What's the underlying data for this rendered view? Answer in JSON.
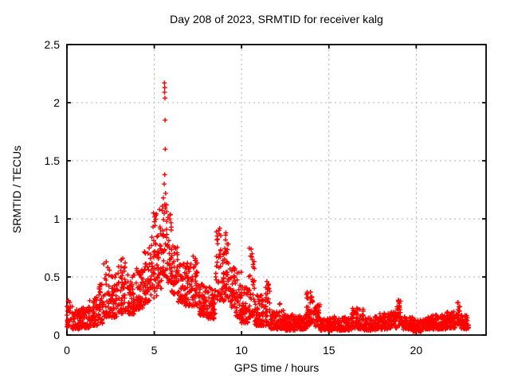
{
  "chart_data": {
    "type": "scatter",
    "title": "Day 208 of 2023, SRMTID for receiver kalg",
    "xlabel": "GPS time / hours",
    "ylabel": "SRMTID / TECUs",
    "xlim": [
      0,
      24
    ],
    "ylim": [
      0,
      2.5
    ],
    "xticks": [
      0,
      5,
      10,
      15,
      20
    ],
    "yticks": [
      0,
      0.5,
      1,
      1.5,
      2,
      2.5
    ],
    "grid": true,
    "legend": null,
    "marker": "plus",
    "marker_color": "#ff0000",
    "grid_color": "#b0b0b0",
    "border_color": "#000000",
    "seed": 13,
    "density_bins": [
      [
        0.0,
        0.3,
        0.07,
        0.33,
        30
      ],
      [
        0.3,
        0.8,
        0.05,
        0.22,
        55
      ],
      [
        0.8,
        1.3,
        0.06,
        0.25,
        55
      ],
      [
        1.3,
        1.8,
        0.08,
        0.33,
        55
      ],
      [
        1.8,
        2.1,
        0.1,
        0.45,
        35
      ],
      [
        2.1,
        2.45,
        0.15,
        0.62,
        40
      ],
      [
        2.45,
        2.9,
        0.15,
        0.52,
        50
      ],
      [
        2.9,
        3.35,
        0.18,
        0.65,
        50
      ],
      [
        3.35,
        3.9,
        0.18,
        0.52,
        60
      ],
      [
        3.9,
        4.4,
        0.22,
        0.58,
        55
      ],
      [
        4.4,
        4.8,
        0.28,
        0.75,
        45
      ],
      [
        4.8,
        5.15,
        0.32,
        1.05,
        40
      ],
      [
        5.15,
        5.45,
        0.4,
        0.95,
        35
      ],
      [
        5.45,
        5.75,
        0.5,
        1.15,
        40
      ],
      [
        5.75,
        6.0,
        0.45,
        1.05,
        30
      ],
      [
        6.0,
        6.35,
        0.35,
        0.8,
        40
      ],
      [
        6.35,
        6.75,
        0.28,
        0.62,
        45
      ],
      [
        6.75,
        7.15,
        0.25,
        0.62,
        45
      ],
      [
        7.15,
        7.5,
        0.25,
        0.68,
        40
      ],
      [
        7.5,
        8.0,
        0.17,
        0.45,
        55
      ],
      [
        8.0,
        8.5,
        0.14,
        0.42,
        55
      ],
      [
        8.5,
        8.85,
        0.3,
        0.92,
        40
      ],
      [
        8.85,
        9.05,
        0.28,
        0.75,
        25
      ],
      [
        9.05,
        9.3,
        0.32,
        0.88,
        30
      ],
      [
        9.3,
        9.65,
        0.22,
        0.6,
        35
      ],
      [
        9.65,
        10.0,
        0.15,
        0.55,
        40
      ],
      [
        10.0,
        10.4,
        0.1,
        0.42,
        45
      ],
      [
        10.4,
        10.75,
        0.15,
        0.76,
        40
      ],
      [
        10.75,
        11.2,
        0.08,
        0.35,
        50
      ],
      [
        11.2,
        11.65,
        0.08,
        0.45,
        50
      ],
      [
        11.65,
        12.1,
        0.05,
        0.2,
        50
      ],
      [
        12.1,
        12.45,
        0.05,
        0.27,
        40
      ],
      [
        12.45,
        13.1,
        0.04,
        0.18,
        70
      ],
      [
        13.1,
        13.7,
        0.05,
        0.17,
        65
      ],
      [
        13.7,
        14.1,
        0.07,
        0.37,
        45
      ],
      [
        14.1,
        14.5,
        0.07,
        0.28,
        45
      ],
      [
        14.5,
        15.3,
        0.04,
        0.15,
        85
      ],
      [
        15.3,
        16.3,
        0.04,
        0.16,
        105
      ],
      [
        16.3,
        17.0,
        0.05,
        0.23,
        75
      ],
      [
        17.0,
        17.8,
        0.04,
        0.16,
        85
      ],
      [
        17.8,
        18.5,
        0.05,
        0.19,
        75
      ],
      [
        18.5,
        18.9,
        0.06,
        0.2,
        40
      ],
      [
        18.9,
        19.2,
        0.08,
        0.31,
        35
      ],
      [
        19.2,
        19.8,
        0.05,
        0.16,
        60
      ],
      [
        19.8,
        20.3,
        0.03,
        0.13,
        55
      ],
      [
        20.3,
        21.0,
        0.05,
        0.17,
        75
      ],
      [
        21.0,
        21.7,
        0.05,
        0.18,
        75
      ],
      [
        21.7,
        22.25,
        0.06,
        0.2,
        60
      ],
      [
        22.25,
        22.55,
        0.09,
        0.28,
        35
      ],
      [
        22.55,
        23.0,
        0.05,
        0.18,
        50
      ]
    ],
    "outliers": [
      [
        5.58,
        2.17
      ],
      [
        5.6,
        2.13
      ],
      [
        5.59,
        2.09
      ],
      [
        5.61,
        2.04
      ],
      [
        5.62,
        1.85
      ],
      [
        5.63,
        1.6
      ],
      [
        5.6,
        1.38
      ],
      [
        5.57,
        1.3
      ],
      [
        5.65,
        1.22
      ],
      [
        5.52,
        1.18
      ],
      [
        5.7,
        1.12
      ],
      [
        5.3,
        1.08
      ],
      [
        4.95,
        1.05
      ],
      [
        8.7,
        0.9
      ],
      [
        9.1,
        0.88
      ],
      [
        10.55,
        0.74
      ],
      [
        10.6,
        0.7
      ],
      [
        3.2,
        0.66
      ],
      [
        7.35,
        0.66
      ],
      [
        2.25,
        0.63
      ],
      [
        6.9,
        0.62
      ],
      [
        9.62,
        0.57
      ],
      [
        11.45,
        0.46
      ],
      [
        13.95,
        0.37
      ],
      [
        19.0,
        0.3
      ],
      [
        22.4,
        0.28
      ],
      [
        12.2,
        0.27
      ],
      [
        16.6,
        0.23
      ]
    ]
  }
}
